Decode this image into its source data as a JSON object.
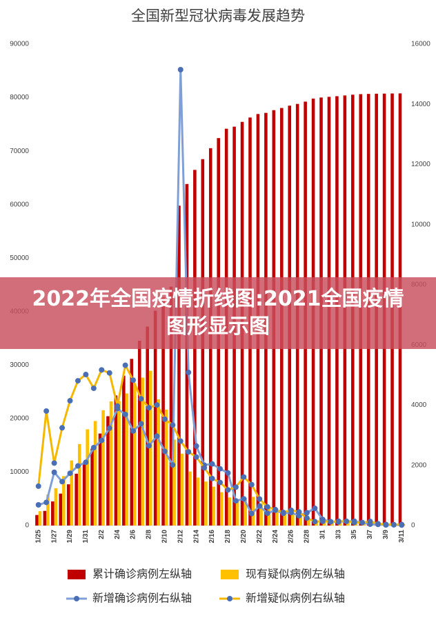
{
  "chart_data": {
    "type": "combo",
    "title": "全国新型冠状病毒发展趋势",
    "categories": [
      "1/25",
      null,
      "1/27",
      null,
      "1/29",
      null,
      "1/31",
      null,
      "2/2",
      null,
      "2/4",
      null,
      "2/6",
      null,
      "2/8",
      null,
      "2/10",
      null,
      "2/12",
      null,
      "2/14",
      null,
      "2/16",
      null,
      "2/18",
      null,
      "2/20",
      null,
      "2/22",
      null,
      "2/24",
      null,
      "2/26",
      null,
      "2/28",
      null,
      "3/1",
      null,
      "3/3",
      null,
      "3/5",
      null,
      "3/7",
      null,
      "3/9",
      null,
      "3/11"
    ],
    "ylim": [
      0,
      90000
    ],
    "yticks": [
      0,
      10000,
      20000,
      30000,
      40000,
      50000,
      60000,
      70000,
      80000,
      90000
    ],
    "y2lim": [
      0,
      16000
    ],
    "y2ticks": [
      0,
      2000,
      4000,
      6000,
      8000,
      10000,
      12000,
      14000,
      16000
    ],
    "grid": false,
    "series": [
      {
        "name": "累计确诊病例左纵轴",
        "kind": "bar",
        "color": "#c00000",
        "values": [
          1975,
          2744,
          4515,
          5974,
          7711,
          9692,
          11791,
          14380,
          17205,
          20438,
          24324,
          28018,
          31161,
          34546,
          37198,
          40171,
          42638,
          44653,
          59804,
          63851,
          66492,
          68500,
          70548,
          72436,
          74185,
          74576,
          75465,
          76288,
          76936,
          77150,
          77658,
          78064,
          78497,
          78824,
          79251,
          79824,
          80026,
          80151,
          80270,
          80409,
          80552,
          80651,
          80695,
          80735,
          80754,
          80778,
          80793
        ]
      },
      {
        "name": "现有疑似病例左纵轴",
        "kind": "bar",
        "color": "#ffc000",
        "values": [
          2684,
          5794,
          6973,
          9239,
          12167,
          15238,
          17988,
          19544,
          21558,
          23214,
          23260,
          24702,
          26359,
          27657,
          28942,
          23589,
          21675,
          16067,
          13435,
          10109,
          8969,
          8228,
          7264,
          6242,
          5248,
          4922,
          5206,
          5365,
          4148,
          3434,
          2824,
          2491,
          2358,
          2308,
          1418,
          851,
          715,
          587,
          520,
          522,
          482,
          502,
          458,
          421,
          349,
          285,
          253
        ]
      },
      {
        "name": "新增确诊病例右纵轴",
        "kind": "line",
        "axis": "y2",
        "color": "#7f9fd6",
        "marker_color": "#4a6fb5",
        "values": [
          688,
          769,
          1771,
          1459,
          1737,
          1982,
          2102,
          2590,
          2829,
          3235,
          3887,
          3694,
          3143,
          3385,
          2652,
          2973,
          2467,
          2015,
          15152,
          5090,
          2641,
          2009,
          2048,
          1886,
          1749,
          820,
          889,
          397,
          648,
          409,
          508,
          406,
          433,
          327,
          427,
          573,
          202,
          125,
          119,
          139,
          143,
          99,
          44,
          40,
          19,
          24,
          15
        ]
      },
      {
        "name": "新增疑似病例右纵轴",
        "kind": "line",
        "axis": "y2",
        "color": "#f5b800",
        "marker_color": "#4a6fb5",
        "values": [
          1309,
          3806,
          2077,
          3248,
          4148,
          4812,
          5019,
          4562,
          5173,
          5072,
          3971,
          5328,
          4833,
          4214,
          3916,
          4008,
          3536,
          3342,
          2807,
          2450,
          2277,
          1918,
          1563,
          1432,
          1185,
          1277,
          1614,
          1361,
          882,
          620,
          530,
          439,
          508,
          452,
          248,
          132,
          141,
          129,
          143,
          143,
          102,
          99,
          137,
          60,
          36,
          31,
          33
        ]
      }
    ]
  },
  "banner": "2022年全国疫情折线图:2021全国疫情图形显示图"
}
